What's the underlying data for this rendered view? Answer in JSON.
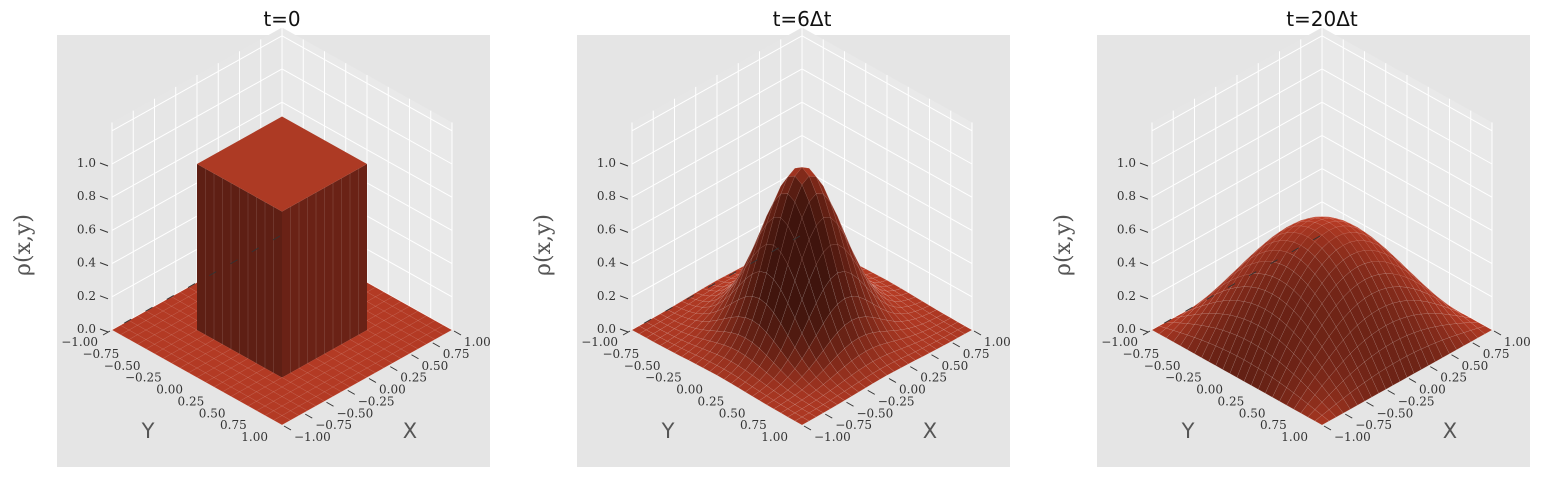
{
  "chart_data": [
    {
      "type": "surface3d",
      "title": "t=0",
      "xlabel": "X",
      "ylabel": "Y",
      "zlabel": "ρ(x,y)",
      "xlim": [
        -1.0,
        1.0
      ],
      "ylim": [
        -1.0,
        1.0
      ],
      "zlim": [
        0.0,
        1.0
      ],
      "x_ticks": [
        "−1.00",
        "−0.75",
        "−0.50",
        "−0.25",
        "0.00",
        "0.25",
        "0.50",
        "0.75",
        "1.00"
      ],
      "y_ticks": [
        "−1.00",
        "−0.75",
        "−0.50",
        "−0.25",
        "0.00",
        "0.25",
        "0.50",
        "0.75",
        "1.00"
      ],
      "z_ticks": [
        "0.0",
        "0.2",
        "0.4",
        "0.6",
        "0.8",
        "1.0"
      ],
      "shape": "box",
      "peak": 1.0,
      "box_halfwidth": 0.5,
      "grid": true
    },
    {
      "type": "surface3d",
      "title": "t=6Δt",
      "xlabel": "X",
      "ylabel": "Y",
      "zlabel": "ρ(x,y)",
      "xlim": [
        -1.0,
        1.0
      ],
      "ylim": [
        -1.0,
        1.0
      ],
      "zlim": [
        0.0,
        1.0
      ],
      "x_ticks": [
        "−1.00",
        "−0.75",
        "−0.50",
        "−0.25",
        "0.00",
        "0.25",
        "0.50",
        "0.75",
        "1.00"
      ],
      "y_ticks": [
        "−1.00",
        "−0.75",
        "−0.50",
        "−0.25",
        "0.00",
        "0.25",
        "0.50",
        "0.75",
        "1.00"
      ],
      "z_ticks": [
        "0.0",
        "0.2",
        "0.4",
        "0.6",
        "0.8",
        "1.0"
      ],
      "shape": "gaussian",
      "peak": 0.98,
      "width": 0.34,
      "grid": true
    },
    {
      "type": "surface3d",
      "title": "t=20Δt",
      "xlabel": "X",
      "ylabel": "Y",
      "zlabel": "ρ(x,y)",
      "xlim": [
        -1.0,
        1.0
      ],
      "ylim": [
        -1.0,
        1.0
      ],
      "zlim": [
        0.0,
        1.0
      ],
      "x_ticks": [
        "−1.00",
        "−0.75",
        "−0.50",
        "−0.25",
        "0.00",
        "0.25",
        "0.50",
        "0.75",
        "1.00"
      ],
      "y_ticks": [
        "−1.00",
        "−0.75",
        "−0.50",
        "−0.25",
        "0.00",
        "0.25",
        "0.50",
        "0.75",
        "1.00"
      ],
      "z_ticks": [
        "0.0",
        "0.2",
        "0.4",
        "0.6",
        "0.8",
        "1.0"
      ],
      "shape": "cosine",
      "peak": 0.63,
      "grid": true
    }
  ],
  "colors": {
    "surface": "#b33a24",
    "pane": "#e5e5e5",
    "gridline": "#ffffff"
  }
}
